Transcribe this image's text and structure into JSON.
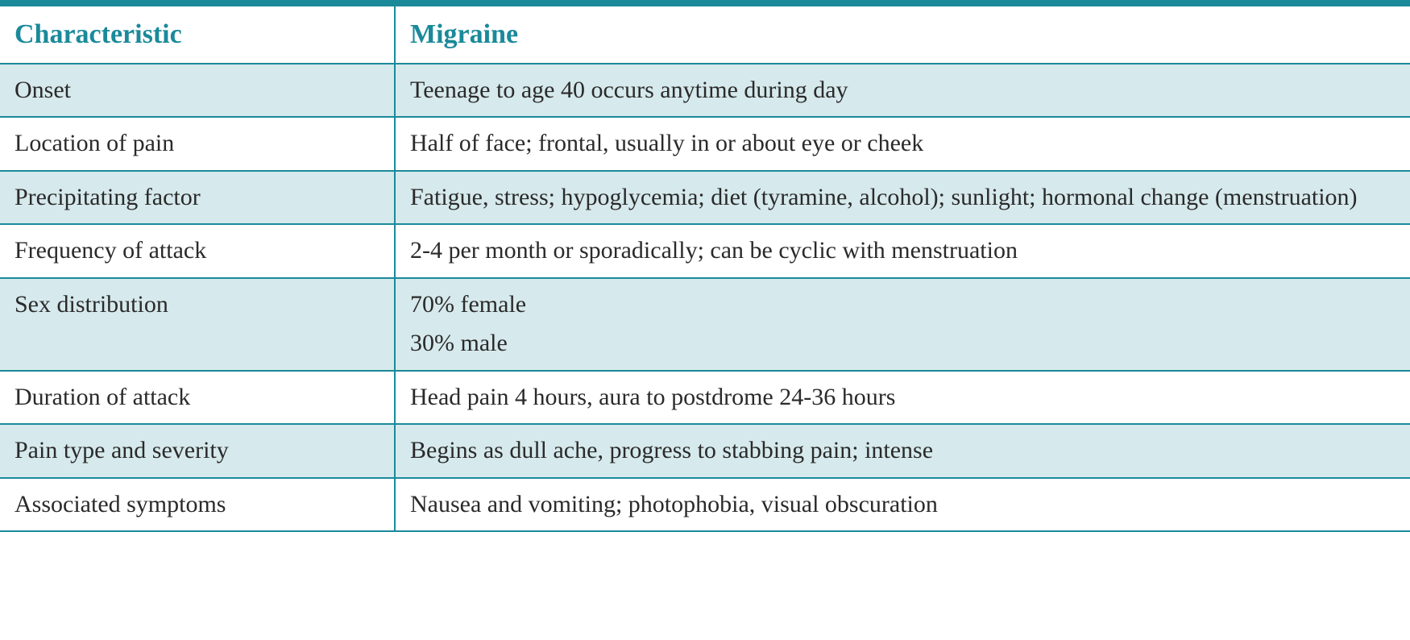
{
  "table": {
    "header_left": "Characteristic",
    "header_right": "Migraine",
    "border_color": "#1a8a9a",
    "header_color": "#1a8a9a",
    "shaded_bg": "#d6e9ec",
    "text_color": "#2a2a2a",
    "rows": [
      {
        "left": "Onset",
        "right": "Teenage to age 40 occurs anytime during day",
        "shaded": true
      },
      {
        "left": "Location of pain",
        "right": "Half of face; frontal, usually in or about eye or cheek",
        "shaded": false
      },
      {
        "left": "Precipitating factor",
        "right": "Fatigue, stress; hypoglycemia; diet (tyramine, alcohol); sunlight; hormonal change (menstruation)",
        "shaded": true
      },
      {
        "left": "Frequency of attack",
        "right": "2-4 per month or sporadically; can be cyclic with menstruation",
        "shaded": false
      },
      {
        "left": "Sex distribution",
        "right_lines": [
          "70% female",
          "30% male"
        ],
        "shaded": true
      },
      {
        "left": "Duration of attack",
        "right": "Head pain 4 hours, aura to postdrome 24-36 hours",
        "shaded": false
      },
      {
        "left": "Pain type and severity",
        "right": "Begins as dull ache, progress to stabbing pain; intense",
        "shaded": true
      },
      {
        "left": "Associated symptoms",
        "right": "Nausea and vomiting; photophobia, visual obscuration",
        "shaded": false
      }
    ]
  }
}
